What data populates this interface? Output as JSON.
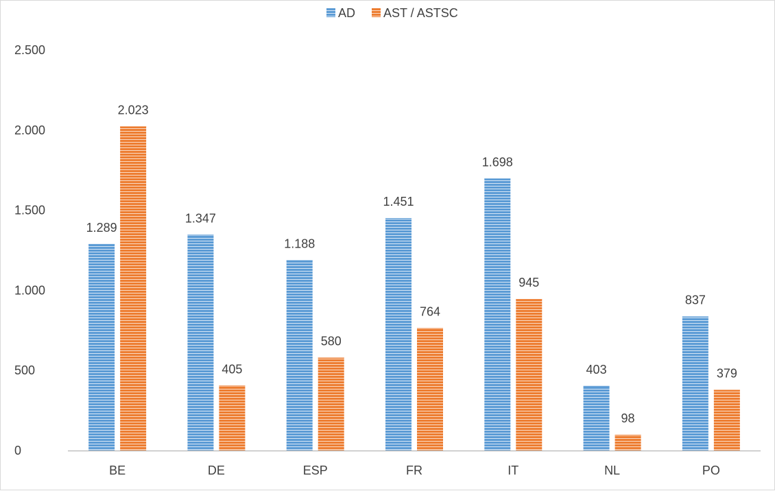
{
  "chart_data": {
    "type": "bar",
    "title": "",
    "xlabel": "",
    "ylabel": "",
    "categories": [
      "BE",
      "DE",
      "ESP",
      "FR",
      "IT",
      "NL",
      "PO"
    ],
    "series": [
      {
        "name": "AD",
        "values": [
          1289,
          1347,
          1188,
          1451,
          1698,
          403,
          837
        ],
        "labels": [
          "1.289",
          "1.347",
          "1.188",
          "1.451",
          "1.698",
          "403",
          "837"
        ],
        "color": "#5b9bd5",
        "stripe_color": "#d9e7f6"
      },
      {
        "name": "AST / ASTSC",
        "values": [
          2023,
          405,
          580,
          764,
          945,
          98,
          379
        ],
        "labels": [
          "2.023",
          "405",
          "580",
          "764",
          "945",
          "98",
          "379"
        ],
        "color": "#ed7d31",
        "stripe_color": "#fbdcc6"
      }
    ],
    "ylim": [
      0,
      2500
    ],
    "yticks": [
      {
        "value": 0,
        "label": "0"
      },
      {
        "value": 500,
        "label": "500"
      },
      {
        "value": 1000,
        "label": "1.000"
      },
      {
        "value": 1500,
        "label": "1.500"
      },
      {
        "value": 2000,
        "label": "2.000"
      },
      {
        "value": 2500,
        "label": "2.500"
      }
    ],
    "grid": false,
    "legend_position": "top",
    "axis_color": "#bfbfbf"
  }
}
